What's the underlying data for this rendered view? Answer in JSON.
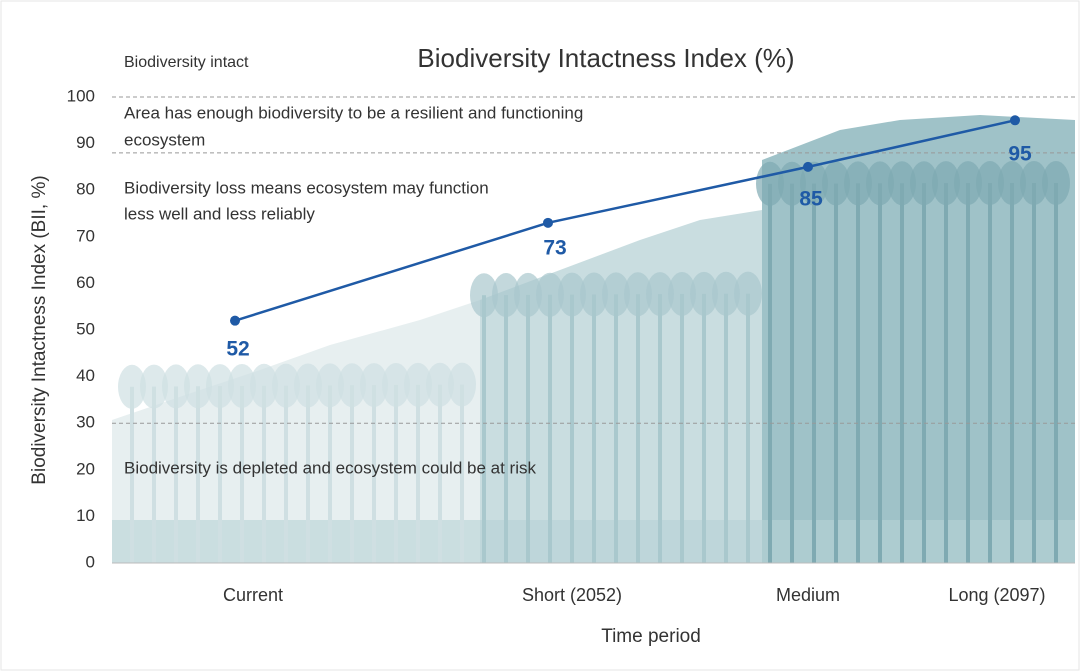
{
  "chart_data": {
    "type": "line",
    "title": "Biodiversity Intactness Index (%)",
    "y_label": "Biodiversity Intactness Index (BII, %)",
    "x_label": "Time period",
    "categories": [
      "Current",
      "Short (2052)",
      "Medium",
      "Long (2097)"
    ],
    "series": [
      {
        "name": "Biodiversity Intactness Index",
        "color": "#1f5aa6",
        "values": [
          52,
          73,
          85,
          95
        ]
      }
    ],
    "ylim": [
      0,
      100
    ],
    "yticks": [
      0,
      10,
      20,
      30,
      40,
      50,
      60,
      70,
      80,
      90,
      100
    ],
    "reference_lines": [
      100,
      88,
      30
    ],
    "annotations": [
      "Biodiversity intact",
      "Area has enough biodiversity to be a resilient and functioning",
      "ecosystem",
      "Biodiversity loss means ecosystem may function",
      "less well and less reliably",
      "Biodiversity is depleted and ecosystem could be at risk"
    ]
  }
}
